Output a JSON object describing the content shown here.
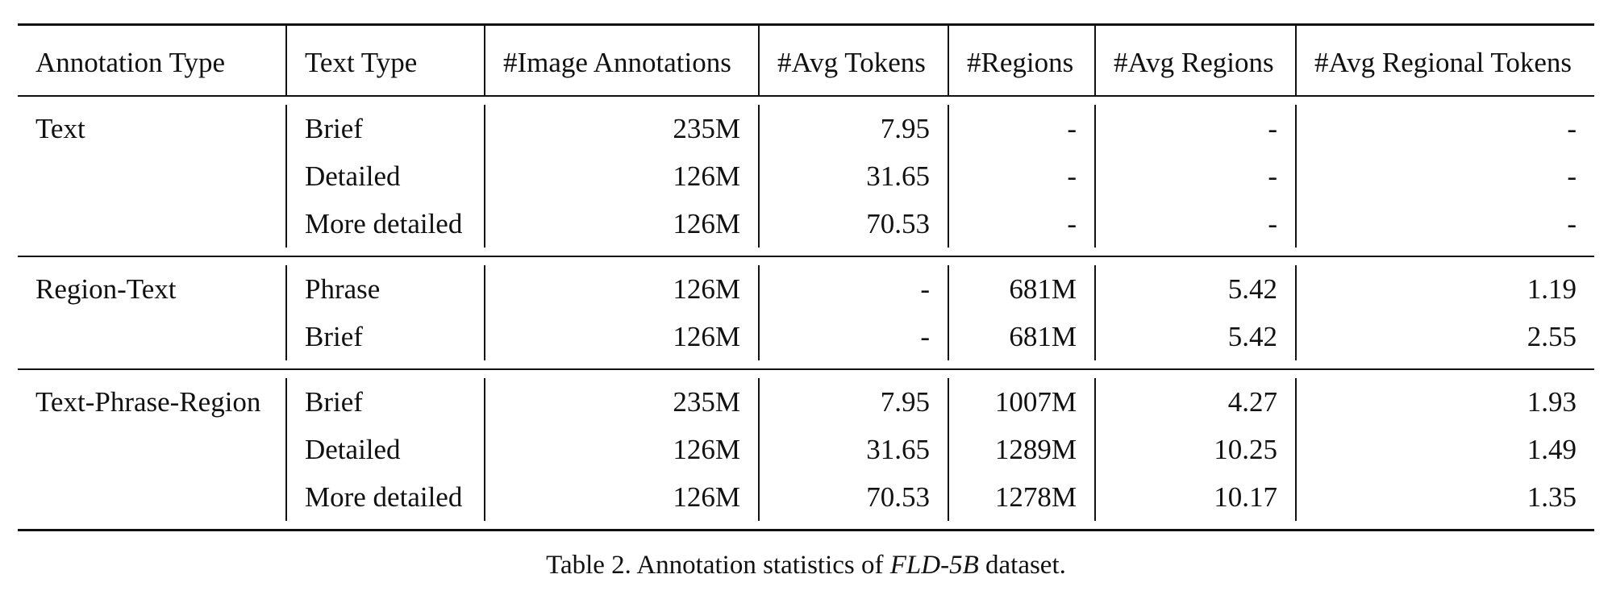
{
  "table": {
    "headers": [
      "Annotation Type",
      "Text Type",
      "#Image Annotations",
      "#Avg Tokens",
      "#Regions",
      "#Avg Regions",
      "#Avg Regional Tokens"
    ],
    "groups": [
      {
        "annotation_type": "Text",
        "rows": [
          [
            "Brief",
            "235M",
            "7.95",
            "-",
            "-",
            "-"
          ],
          [
            "Detailed",
            "126M",
            "31.65",
            "-",
            "-",
            "-"
          ],
          [
            "More detailed",
            "126M",
            "70.53",
            "-",
            "-",
            "-"
          ]
        ]
      },
      {
        "annotation_type": "Region-Text",
        "rows": [
          [
            "Phrase",
            "126M",
            "-",
            "681M",
            "5.42",
            "1.19"
          ],
          [
            "Brief",
            "126M",
            "-",
            "681M",
            "5.42",
            "2.55"
          ]
        ]
      },
      {
        "annotation_type": "Text-Phrase-Region",
        "rows": [
          [
            "Brief",
            "235M",
            "7.95",
            "1007M",
            "4.27",
            "1.93"
          ],
          [
            "Detailed",
            "126M",
            "31.65",
            "1289M",
            "10.25",
            "1.49"
          ],
          [
            "More detailed",
            "126M",
            "70.53",
            "1278M",
            "10.17",
            "1.35"
          ]
        ]
      }
    ]
  },
  "caption": {
    "prefix": "Table 2. Annotation statistics of ",
    "dataset_name": "FLD-5B",
    "suffix": " dataset."
  }
}
